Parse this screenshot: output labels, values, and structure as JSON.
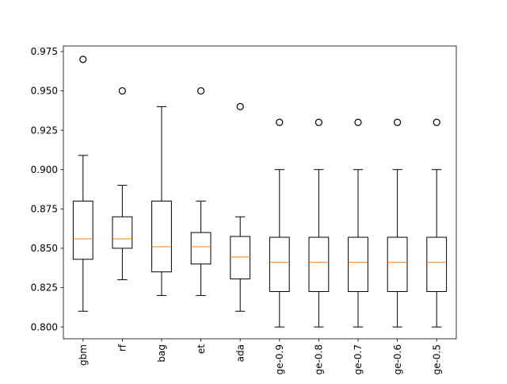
{
  "chart_data": {
    "type": "box",
    "title": "",
    "xlabel": "",
    "ylabel": "",
    "categories": [
      "gbm",
      "rf",
      "bag",
      "et",
      "ada",
      "ge-0.9",
      "ge-0.8",
      "ge-0.7",
      "ge-0.6",
      "ge-0.5"
    ],
    "ylim": [
      0.7925,
      0.9785
    ],
    "y_ticks": [
      0.8,
      0.825,
      0.85,
      0.875,
      0.9,
      0.925,
      0.95,
      0.975
    ],
    "y_tick_labels": [
      "0.800",
      "0.825",
      "0.850",
      "0.875",
      "0.900",
      "0.925",
      "0.950",
      "0.975"
    ],
    "boxes": [
      {
        "category": "gbm",
        "whisker_low": 0.81,
        "q1": 0.843,
        "median": 0.856,
        "q3": 0.88,
        "whisker_high": 0.909,
        "outliers": [
          0.97
        ]
      },
      {
        "category": "rf",
        "whisker_low": 0.83,
        "q1": 0.85,
        "median": 0.856,
        "q3": 0.87,
        "whisker_high": 0.89,
        "outliers": [
          0.95
        ]
      },
      {
        "category": "bag",
        "whisker_low": 0.82,
        "q1": 0.835,
        "median": 0.851,
        "q3": 0.88,
        "whisker_high": 0.94,
        "outliers": []
      },
      {
        "category": "et",
        "whisker_low": 0.82,
        "q1": 0.84,
        "median": 0.851,
        "q3": 0.86,
        "whisker_high": 0.88,
        "outliers": [
          0.95
        ]
      },
      {
        "category": "ada",
        "whisker_low": 0.81,
        "q1": 0.8305,
        "median": 0.8445,
        "q3": 0.8575,
        "whisker_high": 0.87,
        "outliers": [
          0.94
        ]
      },
      {
        "category": "ge-0.9",
        "whisker_low": 0.8,
        "q1": 0.8225,
        "median": 0.841,
        "q3": 0.857,
        "whisker_high": 0.9,
        "outliers": [
          0.93
        ]
      },
      {
        "category": "ge-0.8",
        "whisker_low": 0.8,
        "q1": 0.8225,
        "median": 0.841,
        "q3": 0.857,
        "whisker_high": 0.9,
        "outliers": [
          0.93
        ]
      },
      {
        "category": "ge-0.7",
        "whisker_low": 0.8,
        "q1": 0.8225,
        "median": 0.841,
        "q3": 0.857,
        "whisker_high": 0.9,
        "outliers": [
          0.93
        ]
      },
      {
        "category": "ge-0.6",
        "whisker_low": 0.8,
        "q1": 0.8225,
        "median": 0.841,
        "q3": 0.857,
        "whisker_high": 0.9,
        "outliers": [
          0.93
        ]
      },
      {
        "category": "ge-0.5",
        "whisker_low": 0.8,
        "q1": 0.8225,
        "median": 0.841,
        "q3": 0.857,
        "whisker_high": 0.9,
        "outliers": [
          0.93
        ]
      }
    ],
    "colors": {
      "box": "#000000",
      "median": "#ff7f0e",
      "outlier": "#000000",
      "background": "#ffffff"
    },
    "x_tick_rotation": "vertical",
    "grid": false,
    "legend": "none"
  }
}
